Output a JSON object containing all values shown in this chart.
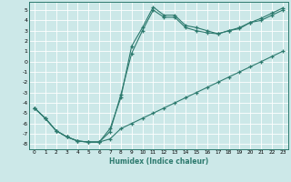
{
  "xlabel": "Humidex (Indice chaleur)",
  "bg_color": "#cce8e8",
  "line_color": "#2d7a6e",
  "grid_color": "#ffffff",
  "xlim": [
    -0.5,
    23.5
  ],
  "ylim": [
    -8.5,
    5.8
  ],
  "xticks": [
    0,
    1,
    2,
    3,
    4,
    5,
    6,
    7,
    8,
    9,
    10,
    11,
    12,
    13,
    14,
    15,
    16,
    17,
    18,
    19,
    20,
    21,
    22,
    23
  ],
  "yticks": [
    5,
    4,
    3,
    2,
    1,
    0,
    -1,
    -2,
    -3,
    -4,
    -5,
    -6,
    -7,
    -8
  ],
  "line1_x": [
    0,
    1,
    2,
    3,
    4,
    5,
    6,
    7,
    8,
    9,
    10,
    11,
    12,
    13,
    14,
    15,
    16,
    17,
    18,
    19,
    20,
    21,
    22,
    23
  ],
  "line1_y": [
    -4.5,
    -5.5,
    -6.7,
    -7.3,
    -7.7,
    -7.8,
    -7.8,
    -7.5,
    -6.5,
    -6.0,
    -5.5,
    -5.0,
    -4.5,
    -4.0,
    -3.5,
    -3.0,
    -2.5,
    -2.0,
    -1.5,
    -1.0,
    -0.5,
    0.0,
    0.5,
    1.0
  ],
  "line2_x": [
    0,
    1,
    2,
    3,
    4,
    5,
    6,
    7,
    8,
    9,
    10,
    11,
    12,
    13,
    14,
    15,
    16,
    17,
    18,
    19,
    20,
    21,
    22,
    23
  ],
  "line2_y": [
    -4.5,
    -5.5,
    -6.7,
    -7.3,
    -7.7,
    -7.8,
    -7.8,
    -6.5,
    -3.5,
    1.5,
    3.3,
    5.3,
    4.5,
    4.5,
    3.5,
    3.3,
    3.0,
    2.7,
    3.0,
    3.3,
    3.8,
    4.2,
    4.7,
    5.2
  ],
  "line3_x": [
    0,
    1,
    2,
    3,
    4,
    5,
    6,
    7,
    8,
    9,
    10,
    11,
    12,
    13,
    14,
    15,
    16,
    17,
    18,
    19,
    20,
    21,
    22,
    23
  ],
  "line3_y": [
    -4.5,
    -5.5,
    -6.7,
    -7.3,
    -7.7,
    -7.8,
    -7.8,
    -6.8,
    -3.2,
    0.8,
    3.0,
    5.0,
    4.3,
    4.3,
    3.3,
    3.0,
    2.8,
    2.7,
    3.0,
    3.2,
    3.8,
    4.0,
    4.5,
    5.0
  ]
}
